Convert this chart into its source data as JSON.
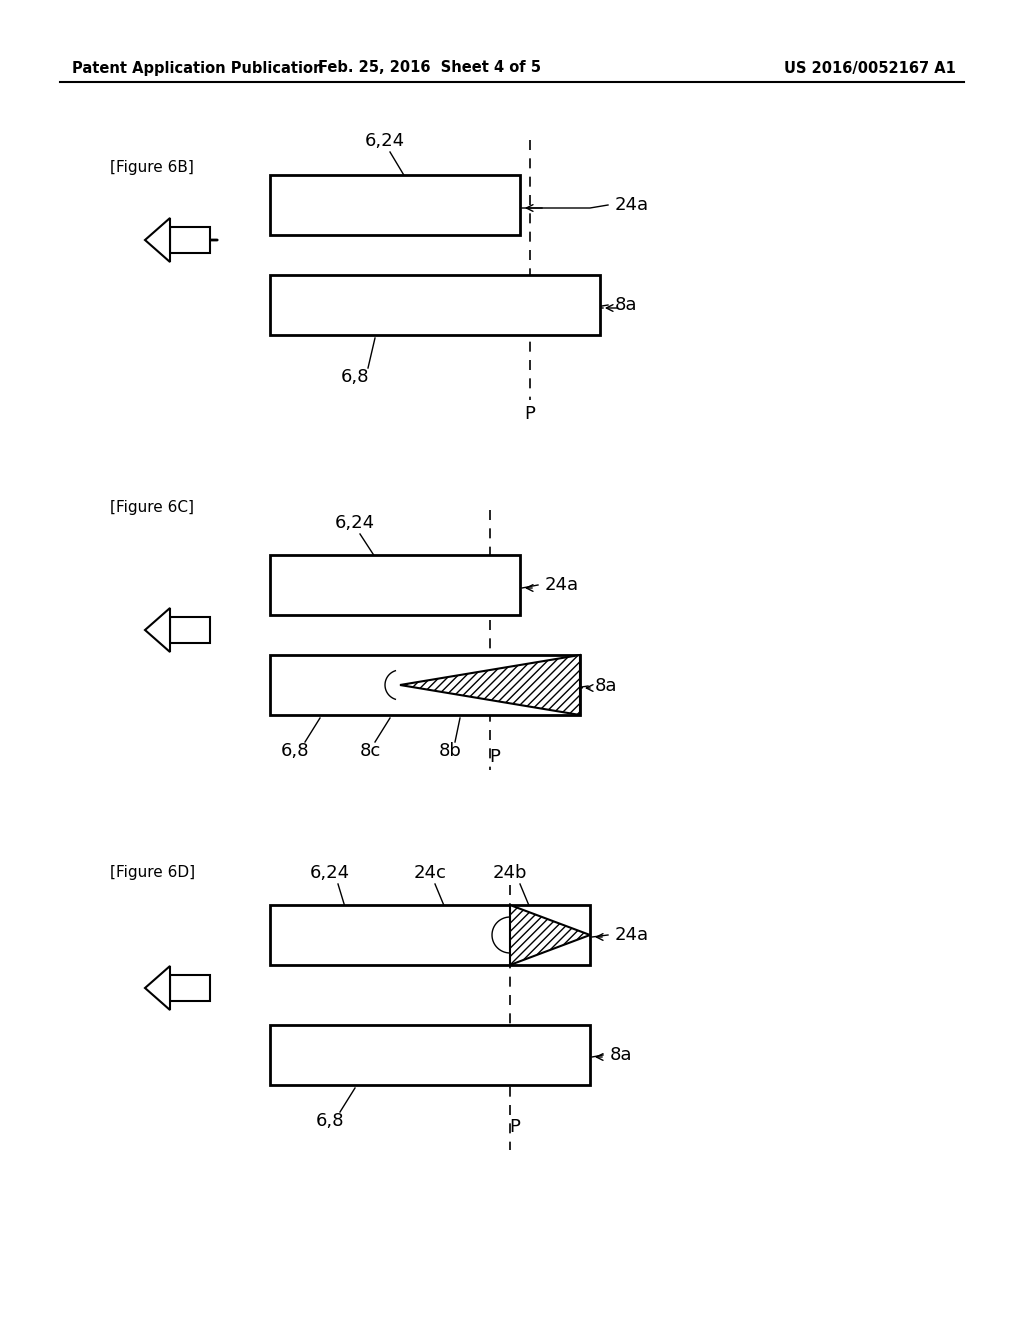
{
  "bg_color": "#ffffff",
  "header_left": "Patent Application Publication",
  "header_mid": "Feb. 25, 2016  Sheet 4 of 5",
  "header_right": "US 2016/0052167 A1",
  "page_width": 10.24,
  "page_height": 13.2
}
